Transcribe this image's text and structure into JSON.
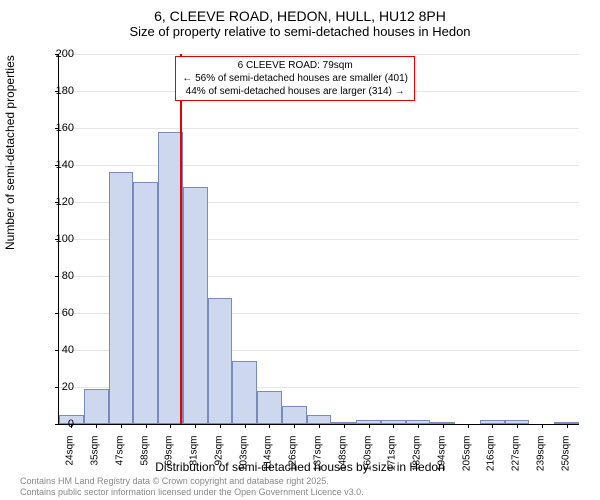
{
  "title": {
    "line1": "6, CLEEVE ROAD, HEDON, HULL, HU12 8PH",
    "line2": "Size of property relative to semi-detached houses in Hedon"
  },
  "chart": {
    "type": "histogram",
    "ylabel": "Number of semi-detached properties",
    "xlabel": "Distribution of semi-detached houses by size in Hedon",
    "ylim": [
      0,
      200
    ],
    "ytick_step": 20,
    "yticks": [
      0,
      20,
      40,
      60,
      80,
      100,
      120,
      140,
      160,
      180,
      200
    ],
    "bar_color": "#cdd7ee",
    "bar_border_color": "#7a8abb",
    "grid_color": "#e6e6e6",
    "background_color": "#ffffff",
    "bins": [
      {
        "label": "24sqm",
        "count": 5
      },
      {
        "label": "35sqm",
        "count": 19
      },
      {
        "label": "47sqm",
        "count": 136
      },
      {
        "label": "58sqm",
        "count": 131
      },
      {
        "label": "69sqm",
        "count": 158
      },
      {
        "label": "81sqm",
        "count": 128
      },
      {
        "label": "92sqm",
        "count": 68
      },
      {
        "label": "103sqm",
        "count": 34
      },
      {
        "label": "114sqm",
        "count": 18
      },
      {
        "label": "126sqm",
        "count": 10
      },
      {
        "label": "137sqm",
        "count": 5
      },
      {
        "label": "148sqm",
        "count": 1
      },
      {
        "label": "160sqm",
        "count": 2
      },
      {
        "label": "171sqm",
        "count": 2
      },
      {
        "label": "182sqm",
        "count": 2
      },
      {
        "label": "194sqm",
        "count": 1
      },
      {
        "label": "205sqm",
        "count": 0
      },
      {
        "label": "216sqm",
        "count": 2
      },
      {
        "label": "227sqm",
        "count": 2
      },
      {
        "label": "239sqm",
        "count": 0
      },
      {
        "label": "250sqm",
        "count": 1
      }
    ],
    "marker": {
      "color": "#e60000",
      "bin_position": 4.9,
      "annotation": {
        "line1": "6 CLEEVE ROAD: 79sqm",
        "line2": "← 56% of semi-detached houses are smaller (401)",
        "line3": "44% of semi-detached houses are larger (314) →"
      }
    }
  },
  "footer": {
    "line1": "Contains HM Land Registry data © Crown copyright and database right 2025.",
    "line2": "Contains public sector information licensed under the Open Government Licence v3.0."
  }
}
